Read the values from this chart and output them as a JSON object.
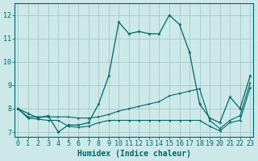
{
  "xlabel": "Humidex (Indice chaleur)",
  "bg_color": "#cce8e8",
  "grid_color": "#aacccc",
  "line_color": "#006666",
  "xlim": [
    -0.3,
    23.3
  ],
  "ylim": [
    6.8,
    12.5
  ],
  "xticks": [
    0,
    1,
    2,
    3,
    4,
    5,
    6,
    7,
    8,
    9,
    10,
    11,
    12,
    13,
    14,
    15,
    16,
    17,
    18,
    19,
    20,
    21,
    22,
    23
  ],
  "yticks": [
    7,
    8,
    9,
    10,
    11,
    12
  ],
  "x": [
    0,
    1,
    2,
    3,
    4,
    5,
    6,
    7,
    8,
    9,
    10,
    11,
    12,
    13,
    14,
    15,
    16,
    17,
    18,
    19,
    20,
    21,
    22,
    23
  ],
  "line1_y": [
    8.0,
    7.8,
    7.6,
    7.7,
    7.0,
    7.3,
    7.3,
    7.4,
    8.2,
    9.4,
    11.7,
    11.2,
    11.3,
    11.2,
    11.2,
    12.0,
    11.6,
    10.4,
    8.2,
    7.6,
    7.4,
    8.5,
    8.0,
    9.4
  ],
  "line2_y": [
    8.0,
    7.65,
    7.65,
    7.65,
    7.65,
    7.65,
    7.6,
    7.6,
    7.65,
    7.75,
    7.9,
    8.0,
    8.1,
    8.2,
    8.3,
    8.55,
    8.65,
    8.75,
    8.85,
    7.5,
    7.15,
    7.5,
    7.7,
    9.1
  ],
  "line3_y": [
    8.0,
    7.6,
    7.55,
    7.5,
    7.5,
    7.25,
    7.2,
    7.25,
    7.4,
    7.5,
    7.5,
    7.5,
    7.5,
    7.5,
    7.5,
    7.5,
    7.5,
    7.5,
    7.5,
    7.25,
    7.05,
    7.4,
    7.5,
    8.9
  ],
  "xlabel_fontsize": 7,
  "tick_fontsize": 6
}
